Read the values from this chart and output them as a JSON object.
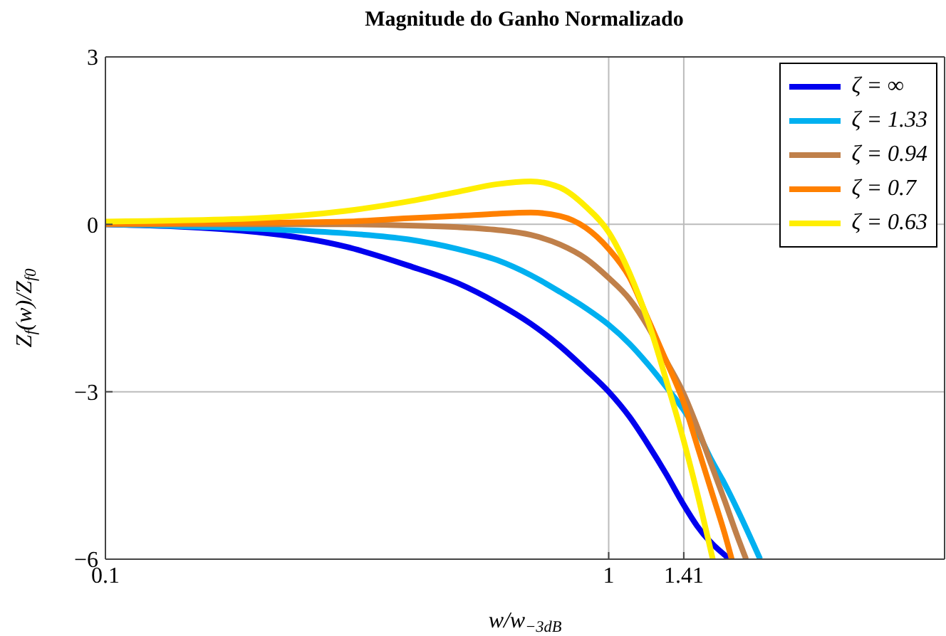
{
  "chart_data": {
    "type": "line",
    "title": "Magnitude do Ganho Normalizado",
    "xlabel": "w/w$_{−3dB}$",
    "ylabel": "Z$_{f}$(w)/Z$_{f0}$",
    "log": "x",
    "xlim": [
      0.1,
      4.65
    ],
    "xticks": [
      0.1,
      1,
      1.41
    ],
    "ylim": [
      -6,
      3
    ],
    "yticks": [
      {
        "value": -6,
        "label": "−6"
      },
      {
        "value": -3,
        "label": "−3"
      },
      0,
      3
    ],
    "grid": true,
    "legend": "top right",
    "marker": "none",
    "line_style": "solid",
    "series": [
      {
        "name": "ζ = ∞",
        "color": "#0000ee",
        "x": [
          0.1,
          0.2,
          0.3,
          0.4,
          0.5,
          0.6,
          0.7,
          0.8,
          0.9,
          1.0,
          1.1,
          1.2,
          1.3,
          1.41,
          1.5,
          1.74
        ],
        "values": [
          0,
          -0.14,
          -0.4,
          -0.74,
          -1.05,
          -1.41,
          -1.78,
          -2.18,
          -2.6,
          -3.0,
          -3.45,
          -3.96,
          -4.47,
          -5.03,
          -5.41,
          -6
        ]
      },
      {
        "name": "ζ = 1.33",
        "color": "#00b0f0",
        "x": [
          0.1,
          0.2,
          0.3,
          0.4,
          0.5,
          0.6,
          0.7,
          0.8,
          0.9,
          1.0,
          1.1,
          1.2,
          1.3,
          1.41,
          1.5,
          1.6,
          1.7,
          1.8,
          2.0
        ],
        "values": [
          0,
          -0.08,
          -0.16,
          -0.27,
          -0.44,
          -0.64,
          -0.91,
          -1.21,
          -1.5,
          -1.8,
          -2.14,
          -2.52,
          -2.91,
          -3.33,
          -3.71,
          -4.22,
          -4.65,
          -5.1,
          -6
        ]
      },
      {
        "name": "ζ = 0.94",
        "color": "#c0804a",
        "x": [
          0.1,
          0.2,
          0.3,
          0.4,
          0.5,
          0.6,
          0.7,
          0.8,
          0.9,
          1.0,
          1.1,
          1.2,
          1.3,
          1.41,
          1.5,
          1.6,
          1.7,
          1.8,
          1.875
        ],
        "values": [
          0,
          0,
          0,
          -0.02,
          -0.05,
          -0.1,
          -0.19,
          -0.36,
          -0.61,
          -0.96,
          -1.34,
          -1.85,
          -2.44,
          -3.04,
          -3.63,
          -4.31,
          -4.95,
          -5.58,
          -6
        ]
      },
      {
        "name": "ζ = 0.7",
        "color": "#ff8000",
        "x": [
          0.1,
          0.2,
          0.3,
          0.4,
          0.5,
          0.6,
          0.7,
          0.8,
          0.9,
          1.0,
          1.1,
          1.2,
          1.3,
          1.41,
          1.5,
          1.6,
          1.7,
          1.756
        ],
        "values": [
          0.01,
          0.03,
          0.05,
          0.11,
          0.15,
          0.19,
          0.21,
          0.15,
          -0.06,
          -0.44,
          -0.95,
          -1.72,
          -2.44,
          -3.2,
          -3.97,
          -4.78,
          -5.54,
          -6
        ]
      },
      {
        "name": "ζ = 0.63",
        "color": "#ffee00",
        "x": [
          0.1,
          0.2,
          0.3,
          0.4,
          0.5,
          0.6,
          0.7,
          0.8,
          0.9,
          1.0,
          1.1,
          1.2,
          1.3,
          1.41,
          1.5,
          1.61
        ],
        "values": [
          0.05,
          0.11,
          0.24,
          0.41,
          0.58,
          0.72,
          0.77,
          0.66,
          0.32,
          -0.14,
          -0.87,
          -1.76,
          -2.78,
          -3.88,
          -4.82,
          -6
        ]
      }
    ]
  }
}
